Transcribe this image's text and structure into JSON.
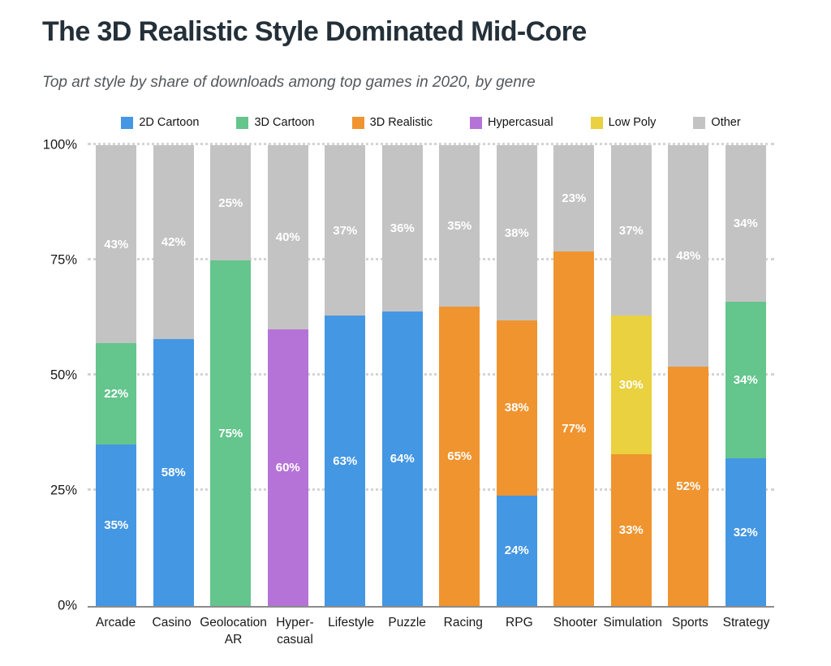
{
  "chart_data": {
    "type": "bar",
    "stacked": true,
    "unit": "percent",
    "title": "The 3D Realistic Style Dominated Mid-Core",
    "subtitle": "Top art style by share of downloads among top games in 2020, by genre",
    "legend_position": "top",
    "grid": "horizontal-dotted",
    "ylim": [
      0,
      100
    ],
    "y_ticks": [
      0,
      25,
      50,
      75,
      100
    ],
    "y_tick_labels": [
      "0%",
      "25%",
      "50%",
      "75%",
      "100%"
    ],
    "value_label_format": "{value}%",
    "categories": [
      "Arcade",
      "Casino",
      "Geolocation\nAR",
      "Hyper-\ncasual",
      "Lifestyle",
      "Puzzle",
      "Racing",
      "RPG",
      "Shooter",
      "Simulation",
      "Sports",
      "Strategy"
    ],
    "series": [
      {
        "name": "2D Cartoon",
        "color": "#4497E3",
        "values": [
          35,
          58,
          0,
          0,
          63,
          64,
          0,
          24,
          0,
          0,
          0,
          32
        ]
      },
      {
        "name": "3D Cartoon",
        "color": "#64C58D",
        "values": [
          22,
          0,
          75,
          0,
          0,
          0,
          0,
          0,
          0,
          0,
          0,
          34
        ]
      },
      {
        "name": "3D Realistic",
        "color": "#F0942F",
        "values": [
          0,
          0,
          0,
          0,
          0,
          0,
          65,
          38,
          77,
          33,
          52,
          0
        ]
      },
      {
        "name": "Hypercasual",
        "color": "#B573D8",
        "values": [
          0,
          0,
          0,
          60,
          0,
          0,
          0,
          0,
          0,
          0,
          0,
          0
        ]
      },
      {
        "name": "Low Poly",
        "color": "#E9D13F",
        "values": [
          0,
          0,
          0,
          0,
          0,
          0,
          0,
          0,
          0,
          30,
          0,
          0
        ]
      },
      {
        "name": "Other",
        "color": "#C4C3C3",
        "values": [
          43,
          42,
          25,
          40,
          37,
          36,
          35,
          38,
          23,
          37,
          48,
          34
        ]
      }
    ]
  },
  "style": {
    "title_color": "#243039",
    "subtitle_color": "#53585c",
    "axis_text_color": "#18191a",
    "value_label_color": "#ffffff",
    "gridline_color": "#d4d4d4",
    "baseline_color": "#8c8c8c",
    "background": "#ffffff"
  }
}
